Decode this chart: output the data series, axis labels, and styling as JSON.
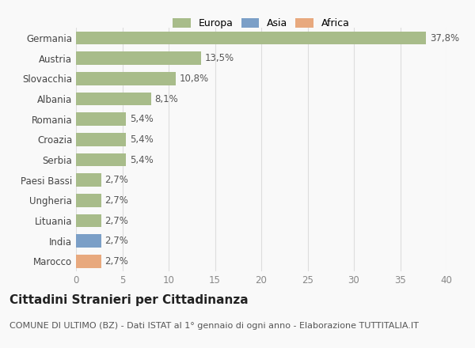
{
  "categories": [
    "Marocco",
    "India",
    "Lituania",
    "Ungheria",
    "Paesi Bassi",
    "Serbia",
    "Croazia",
    "Romania",
    "Albania",
    "Slovacchia",
    "Austria",
    "Germania"
  ],
  "values": [
    2.7,
    2.7,
    2.7,
    2.7,
    2.7,
    5.4,
    5.4,
    5.4,
    8.1,
    10.8,
    13.5,
    37.8
  ],
  "labels": [
    "2,7%",
    "2,7%",
    "2,7%",
    "2,7%",
    "2,7%",
    "5,4%",
    "5,4%",
    "5,4%",
    "8,1%",
    "10,8%",
    "13,5%",
    "37,8%"
  ],
  "colors": [
    "#e8a97e",
    "#7b9fc7",
    "#a8bc8a",
    "#a8bc8a",
    "#a8bc8a",
    "#a8bc8a",
    "#a8bc8a",
    "#a8bc8a",
    "#a8bc8a",
    "#a8bc8a",
    "#a8bc8a",
    "#a8bc8a"
  ],
  "legend_labels": [
    "Europa",
    "Asia",
    "Africa"
  ],
  "legend_colors": [
    "#a8bc8a",
    "#7b9fc7",
    "#e8a97e"
  ],
  "title": "Cittadini Stranieri per Cittadinanza",
  "subtitle": "COMUNE DI ULTIMO (BZ) - Dati ISTAT al 1° gennaio di ogni anno - Elaborazione TUTTITALIA.IT",
  "xlim": [
    0,
    40
  ],
  "xticks": [
    0,
    5,
    10,
    15,
    20,
    25,
    30,
    35,
    40
  ],
  "background_color": "#f9f9f9",
  "bar_height": 0.65,
  "title_fontsize": 11,
  "subtitle_fontsize": 8,
  "label_fontsize": 8.5,
  "tick_fontsize": 8.5,
  "legend_fontsize": 9
}
